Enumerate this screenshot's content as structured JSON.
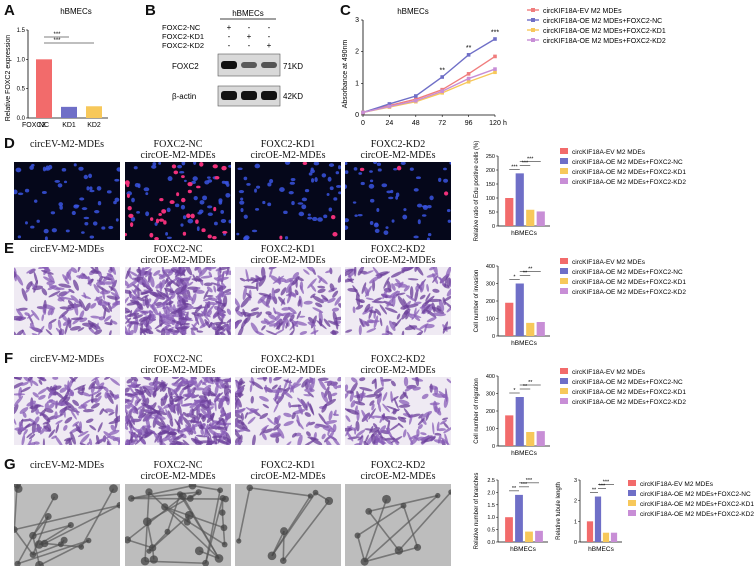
{
  "panelA": {
    "label": "A",
    "title": "hBMECs",
    "ylabel": "Relative FOXC2 expression",
    "xaxis_name": "FOXC2",
    "chart_data": {
      "type": "bar",
      "categories": [
        "NC",
        "KD1",
        "KD2"
      ],
      "values": [
        1.0,
        0.19,
        0.2
      ],
      "ylim": [
        0,
        1.5
      ],
      "yticks": [
        "0.0",
        "0.5",
        "1.0",
        "1.5"
      ],
      "colors": [
        "#f26b6b",
        "#6f6fc7",
        "#f7c85a"
      ],
      "sig": [
        "***",
        "***"
      ]
    }
  },
  "panelB": {
    "label": "B",
    "header": "hBMECs",
    "rows": [
      "FOXC2-NC",
      "FOXC2-KD1",
      "FOXC2-KD2"
    ],
    "signs": [
      [
        "+",
        "-",
        "-"
      ],
      [
        "-",
        "+",
        "-"
      ],
      [
        "-",
        "-",
        "+"
      ]
    ],
    "bands": [
      {
        "name": "FOXC2",
        "size": "71KD"
      },
      {
        "name": "β-actin",
        "size": "42KD"
      }
    ]
  },
  "panelC": {
    "label": "C",
    "title": "hBMECs",
    "ylabel": "Absorbance at 490nm",
    "xunit": "h",
    "chart_data": {
      "type": "line",
      "x": [
        0,
        24,
        48,
        72,
        96,
        120
      ],
      "xticks": [
        "0",
        "24",
        "48",
        "72",
        "96",
        "120"
      ],
      "ylim": [
        0,
        3
      ],
      "yticks": [
        "0",
        "1",
        "2",
        "3"
      ],
      "series": [
        {
          "name": "circKIF18A-EV M2 MDEs",
          "values": [
            0.08,
            0.3,
            0.5,
            0.8,
            1.3,
            1.85
          ],
          "color": "#f07d7d"
        },
        {
          "name": "circKIF18A-OE M2 MDEs+FOXC2-NC",
          "values": [
            0.08,
            0.35,
            0.6,
            1.2,
            1.9,
            2.4
          ],
          "color": "#6f6fc7"
        },
        {
          "name": "circKIF18A-OE M2 MDEs+FOXC2-KD1",
          "values": [
            0.08,
            0.25,
            0.42,
            0.7,
            1.05,
            1.35
          ],
          "color": "#f7c85a"
        },
        {
          "name": "circKIF18A-OE M2 MDEs+FOXC2-KD2",
          "values": [
            0.08,
            0.27,
            0.45,
            0.75,
            1.15,
            1.45
          ],
          "color": "#c88ed6"
        }
      ],
      "sig": [
        "**",
        "**",
        "***"
      ]
    }
  },
  "rows": [
    {
      "label": "D",
      "captions": [
        [
          "circEV-M2-MDEs",
          ""
        ],
        [
          "FOXC2-NC",
          "circOE-M2-MDEs"
        ],
        [
          "FOXC2-KD1",
          "circOE-M2-MDEs"
        ],
        [
          "FOXC2-KD2",
          "circOE-M2-MDEs"
        ]
      ],
      "chart": {
        "ylabel": "Relative ratio of Edu positive cells (%)",
        "xlabel": "hBMECs",
        "ylim": [
          0,
          250
        ],
        "yticks": [
          "0",
          "50",
          "100",
          "150",
          "200",
          "250"
        ],
        "values": [
          100,
          188,
          58,
          52
        ],
        "legend": [
          "circKIF18A-EV M2 MDEs",
          "circKIF18A-OE M2 MDEs+FOXC2-NC",
          "circKIF18A-OE M2 MDEs+FOXC2-KD1",
          "circKIF18A-OE M2 MDEs+FOXC2-KD2"
        ],
        "sig": [
          "***",
          "***",
          "***"
        ]
      }
    },
    {
      "label": "E",
      "captions": [
        [
          "circEV-M2-MDEs",
          ""
        ],
        [
          "FOXC2-NC",
          "circOE-M2-MDEs"
        ],
        [
          "FOXC2-KD1",
          "circOE-M2-MDEs"
        ],
        [
          "FOXC2-KD2",
          "circOE-M2-MDEs"
        ]
      ],
      "chart": {
        "ylabel": "Cell number of invasion",
        "xlabel": "hBMECs",
        "ylim": [
          0,
          400
        ],
        "yticks": [
          "0",
          "100",
          "200",
          "300",
          "400"
        ],
        "values": [
          190,
          300,
          75,
          80
        ],
        "legend": [
          "circKIF18A-EV M2 MDEs",
          "circKIF18A-OE M2 MDEs+FOXC2-NC",
          "circKIF18A-OE M2 MDEs+FOXC2-KD1",
          "circKIF18A-OE M2 MDEs+FOXC2-KD2"
        ],
        "sig": [
          "*",
          "**",
          "**"
        ]
      }
    },
    {
      "label": "F",
      "captions": [
        [
          "circEV-M2-MDEs",
          ""
        ],
        [
          "FOXC2-NC",
          "circOE-M2-MDEs"
        ],
        [
          "FOXC2-KD1",
          "circOE-M2-MDEs"
        ],
        [
          "FOXC2-KD2",
          "circOE-M2-MDEs"
        ]
      ],
      "chart": {
        "ylabel": "Cell number of migration",
        "xlabel": "hBMECs",
        "ylim": [
          0,
          400
        ],
        "yticks": [
          "0",
          "100",
          "200",
          "300",
          "400"
        ],
        "values": [
          175,
          280,
          80,
          85
        ],
        "legend": [
          "circKIF18A-EV M2 MDEs",
          "circKIF18A-OE M2 MDEs+FOXC2-NC",
          "circKIF18A-OE M2 MDEs+FOXC2-KD1",
          "circKIF18A-OE M2 MDEs+FOXC2-KD2"
        ],
        "sig": [
          "*",
          "**",
          "**"
        ]
      }
    }
  ],
  "panelG": {
    "label": "G",
    "captions": [
      [
        "circEV-M2-MDEs",
        ""
      ],
      [
        "FOXC2-NC",
        "circOE-M2-MDEs"
      ],
      [
        "FOXC2-KD1",
        "circOE-M2-MDEs"
      ],
      [
        "FOXC2-KD2",
        "circOE-M2-MDEs"
      ]
    ],
    "charts": [
      {
        "ylabel": "Relative number of branches",
        "xlabel": "hBMECs",
        "ylim": [
          0,
          2.5
        ],
        "yticks": [
          "0.0",
          "0.5",
          "1.0",
          "1.5",
          "2.0",
          "2.5"
        ],
        "values": [
          1.0,
          1.9,
          0.42,
          0.45
        ],
        "sig": [
          "**",
          "***",
          "***"
        ]
      },
      {
        "ylabel": "Relative tubule length",
        "xlabel": "hBMECs",
        "ylim": [
          0,
          3
        ],
        "yticks": [
          "0",
          "1",
          "2",
          "3"
        ],
        "values": [
          1.0,
          2.2,
          0.45,
          0.45
        ],
        "sig": [
          "**",
          "***",
          "***"
        ]
      }
    ],
    "legend": [
      "circKIF18A-EV M2 MDEs",
      "circKIF18A-OE M2 MDEs+FOXC2-NC",
      "circKIF18A-OE M2 MDEs+FOXC2-KD1",
      "circKIF18A-OE M2 MDEs+FOXC2-KD2"
    ]
  },
  "colors": [
    "#f26b6b",
    "#6f6fc7",
    "#f7c85a",
    "#c88ed6"
  ]
}
